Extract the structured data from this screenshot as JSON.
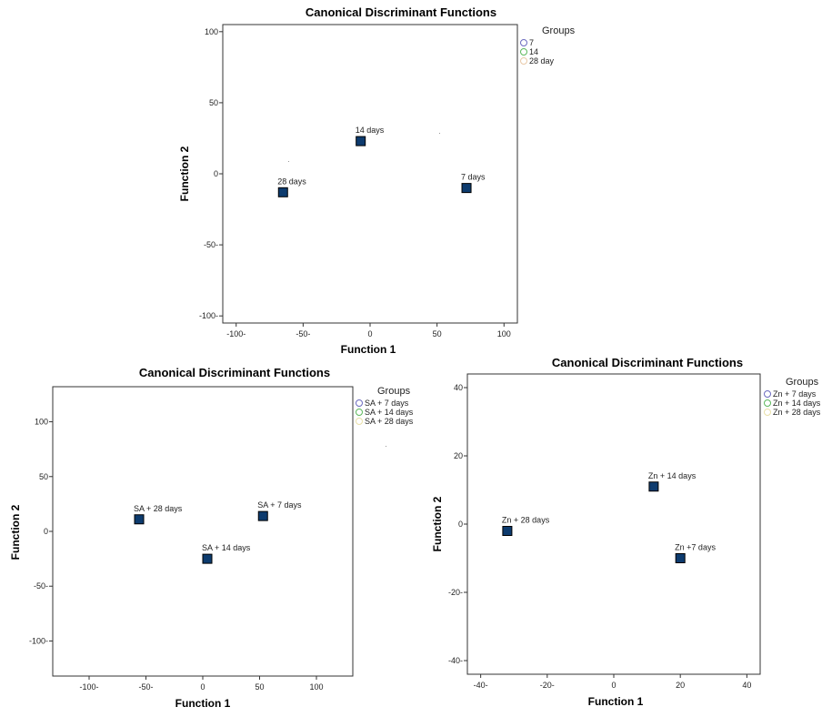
{
  "chart_data": [
    {
      "type": "scatter",
      "title": "Canonical Discriminant Functions",
      "xlabel": "Function 1",
      "ylabel": "Function 2",
      "xlim": [
        -110,
        110
      ],
      "ylim": [
        -105,
        105
      ],
      "x_ticks": [
        -100,
        -50,
        0,
        50,
        100
      ],
      "y_ticks": [
        -100,
        -50,
        0,
        50,
        100
      ],
      "x_tick_labels": [
        "-100-",
        "-50-",
        "0",
        "50",
        "100"
      ],
      "y_tick_labels": [
        "-100-",
        "-50-",
        "0",
        "50",
        "100"
      ],
      "legend_title": "Groups",
      "legend_position": "top-right",
      "legend": [
        {
          "label": "7",
          "color": "#6b6bbf"
        },
        {
          "label": "14",
          "color": "#5cb85c"
        },
        {
          "label": "28 day",
          "color": "#e9c9a8"
        }
      ],
      "marker_color": "#0d3b6e",
      "points": [
        {
          "label": "14 days",
          "x": -7,
          "y": 23
        },
        {
          "label": "28 days",
          "x": -65,
          "y": -13
        },
        {
          "label": "7 days",
          "x": 72,
          "y": -10
        }
      ],
      "grid": false
    },
    {
      "type": "scatter",
      "title": "Canonical Discriminant Functions",
      "xlabel": "Function 1",
      "ylabel": "Function 2",
      "xlim": [
        -132,
        132
      ],
      "ylim": [
        -132,
        132
      ],
      "x_ticks": [
        -100,
        -50,
        0,
        50,
        100
      ],
      "y_ticks": [
        -100,
        -50,
        0,
        50,
        100
      ],
      "x_tick_labels": [
        "-100-",
        "-50-",
        "0",
        "50",
        "100"
      ],
      "y_tick_labels": [
        "-100-",
        "-50-",
        "0",
        "50",
        "100"
      ],
      "legend_title": "Groups",
      "legend_position": "top-right",
      "legend": [
        {
          "label": "SA + 7 days",
          "color": "#6b6bbf"
        },
        {
          "label": "SA + 14 days",
          "color": "#5cb85c"
        },
        {
          "label": "SA + 28 days",
          "color": "#e9e0a8"
        }
      ],
      "marker_color": "#0d3b6e",
      "points": [
        {
          "label": "SA + 28 days",
          "x": -56,
          "y": 11
        },
        {
          "label": "SA + 7 days",
          "x": 53,
          "y": 14
        },
        {
          "label": "SA + 14 days",
          "x": 4,
          "y": -25
        }
      ],
      "grid": false
    },
    {
      "type": "scatter",
      "title": "Canonical Discriminant Functions",
      "xlabel": "Function 1",
      "ylabel": "Function 2",
      "xlim": [
        -44,
        44
      ],
      "ylim": [
        -44,
        44
      ],
      "x_ticks": [
        -40,
        -20,
        0,
        20,
        40
      ],
      "y_ticks": [
        -40,
        -20,
        0,
        20,
        40
      ],
      "x_tick_labels": [
        "-40-",
        "-20-",
        "0",
        "20",
        "40"
      ],
      "y_tick_labels": [
        "-40-",
        "-20-",
        "0",
        "20",
        "40"
      ],
      "legend_title": "Groups",
      "legend_position": "top-right",
      "legend": [
        {
          "label": "Zn + 7 days",
          "color": "#6b6bbf"
        },
        {
          "label": "Zn + 14 days",
          "color": "#5cb85c"
        },
        {
          "label": "Zn + 28 days",
          "color": "#e9e0a8"
        }
      ],
      "marker_color": "#0d3b6e",
      "points": [
        {
          "label": "Zn + 14 days",
          "x": 12,
          "y": 11
        },
        {
          "label": "Zn + 28 days",
          "x": -32,
          "y": -2
        },
        {
          "label": "Zn +7 days",
          "x": 20,
          "y": -10
        }
      ],
      "grid": false
    }
  ]
}
